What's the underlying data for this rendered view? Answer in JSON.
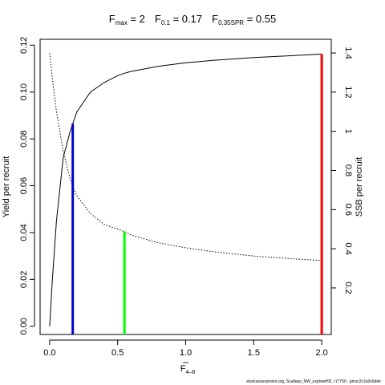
{
  "title": {
    "fmax_main": "F",
    "fmax_sub": "max",
    "fmax_val": " = 2",
    "f01_main": "F",
    "f01_sub": "0.1",
    "f01_val": " = 0.17",
    "fspr_main": "F",
    "fspr_sub": "0.35SPR",
    "fspr_val": " = 0.55"
  },
  "footer": "stockassessment.org, Scallops_NW_exploreHD, r17750 , git:ec2c2a0c6dde",
  "chart_data": {
    "type": "line",
    "x_label_main": "F",
    "x_label_sub": "4–8",
    "y_left_label": "Yield per recruit",
    "y_right_label": "SSB per recruit",
    "x_ticks": [
      "0.0",
      "0.5",
      "1.0",
      "1.5",
      "2.0"
    ],
    "x_tick_values": [
      0,
      0.5,
      1.0,
      1.5,
      2.0
    ],
    "y_left_ticks": [
      "0.00",
      "0.02",
      "0.04",
      "0.06",
      "0.08",
      "0.10",
      "0.12"
    ],
    "y_left_tick_values": [
      0,
      0.02,
      0.04,
      0.06,
      0.08,
      0.1,
      0.12
    ],
    "y_right_ticks": [
      "0.2",
      "0.4",
      "0.6",
      "0.8",
      "1",
      "1.2",
      "1.4"
    ],
    "y_right_tick_values": [
      0.2,
      0.4,
      0.6,
      0.8,
      1.0,
      1.2,
      1.4
    ],
    "xlim": [
      -0.07,
      2.07
    ],
    "ylim_left": [
      -0.0035,
      0.1225
    ],
    "ylim_right": [
      -0.0378,
      1.4699
    ],
    "series": [
      {
        "style": "solid",
        "axis": "left",
        "x": [
          0,
          0.02,
          0.05,
          0.1,
          0.15,
          0.17,
          0.2,
          0.3,
          0.4,
          0.5,
          0.55,
          0.6,
          0.8,
          1.0,
          1.2,
          1.5,
          1.8,
          2.0
        ],
        "y": [
          0,
          0.02,
          0.045,
          0.072,
          0.083,
          0.0865,
          0.0915,
          0.1,
          0.104,
          0.107,
          0.108,
          0.1088,
          0.111,
          0.1125,
          0.1135,
          0.1147,
          0.1156,
          0.1162
        ]
      },
      {
        "style": "dotted",
        "axis": "right",
        "x": [
          0,
          0.02,
          0.05,
          0.1,
          0.15,
          0.17,
          0.2,
          0.3,
          0.4,
          0.5,
          0.55,
          0.6,
          0.8,
          1.0,
          1.2,
          1.5,
          1.8,
          2.0
        ],
        "y": [
          1.4,
          1.27,
          1.1,
          0.9,
          0.76,
          0.72,
          0.67,
          0.58,
          0.525,
          0.5,
          0.488,
          0.47,
          0.43,
          0.405,
          0.385,
          0.363,
          0.348,
          0.34
        ]
      }
    ],
    "vlines": [
      {
        "x": 0.17,
        "y": 0.0865,
        "axis": "left",
        "color": "#0000cc"
      },
      {
        "x": 0.55,
        "y": 0.488,
        "axis": "right",
        "color": "#00ff00"
      },
      {
        "x": 2.0,
        "y": 0.1162,
        "axis": "left",
        "color": "#ff0000"
      }
    ]
  }
}
